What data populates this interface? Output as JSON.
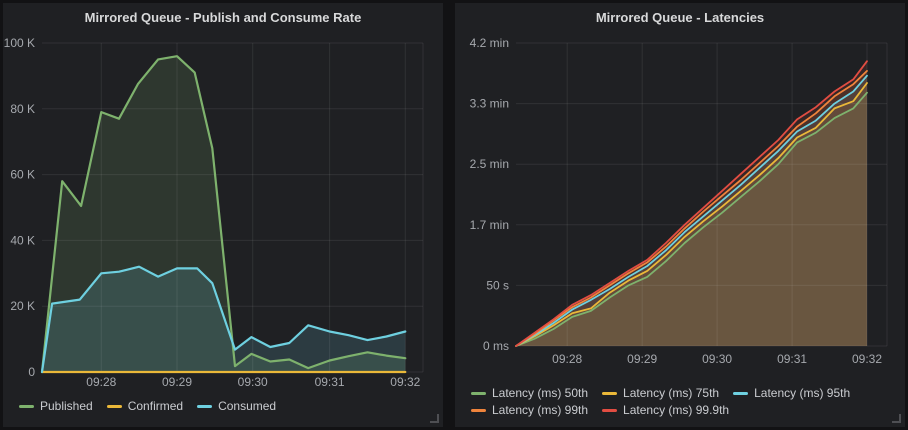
{
  "chart_data": [
    {
      "type": "area",
      "title": "Mirrored Queue - Publish and Consume Rate",
      "x_domain": [
        6,
        308
      ],
      "y_max": 100000,
      "grid": true,
      "legend_position": "bottom",
      "y_ticks": [
        {
          "v": 0,
          "label": "0"
        },
        {
          "v": 20000,
          "label": "20 K"
        },
        {
          "v": 40000,
          "label": "40 K"
        },
        {
          "v": 60000,
          "label": "60 K"
        },
        {
          "v": 80000,
          "label": "80 K"
        },
        {
          "v": 100000,
          "label": "100 K"
        }
      ],
      "x_ticks": [
        {
          "t": 53,
          "label": "09:28"
        },
        {
          "t": 113,
          "label": "09:29"
        },
        {
          "t": 173,
          "label": "09:30"
        },
        {
          "t": 234,
          "label": "09:31"
        },
        {
          "t": 294,
          "label": "09:32"
        }
      ],
      "series": [
        {
          "name": "Published",
          "color": "#7eb26d",
          "fill_opacity": 0.16,
          "points": [
            [
              6,
              0
            ],
            [
              22,
              58000
            ],
            [
              37,
              50500
            ],
            [
              53,
              79000
            ],
            [
              67,
              77000
            ],
            [
              82,
              87500
            ],
            [
              98,
              95000
            ],
            [
              113,
              96000
            ],
            [
              127,
              91000
            ],
            [
              141,
              68000
            ],
            [
              159,
              1800
            ],
            [
              172,
              5500
            ],
            [
              187,
              3200
            ],
            [
              202,
              3800
            ],
            [
              217,
              1200
            ],
            [
              234,
              3500
            ],
            [
              249,
              4800
            ],
            [
              264,
              6000
            ],
            [
              279,
              5000
            ],
            [
              294,
              4200
            ]
          ]
        },
        {
          "name": "Confirmed",
          "color": "#eab839",
          "fill_opacity": 0,
          "points": [
            [
              6,
              0
            ],
            [
              294,
              0
            ]
          ]
        },
        {
          "name": "Consumed",
          "color": "#6ed0e0",
          "fill_opacity": 0.16,
          "points": [
            [
              6,
              0
            ],
            [
              14,
              20800
            ],
            [
              36,
              22000
            ],
            [
              53,
              30000
            ],
            [
              67,
              30500
            ],
            [
              83,
              32000
            ],
            [
              98,
              29000
            ],
            [
              113,
              31500
            ],
            [
              129,
              31500
            ],
            [
              141,
              27000
            ],
            [
              159,
              6800
            ],
            [
              172,
              10600
            ],
            [
              187,
              7600
            ],
            [
              202,
              8800
            ],
            [
              217,
              14200
            ],
            [
              234,
              12300
            ],
            [
              249,
              11200
            ],
            [
              264,
              9700
            ],
            [
              279,
              10800
            ],
            [
              294,
              12300
            ]
          ]
        }
      ]
    },
    {
      "type": "area",
      "title": "Mirrored Queue - Latencies",
      "x_domain": [
        0,
        297
      ],
      "y_max": 250,
      "y_unit": "seconds",
      "grid": true,
      "legend_position": "bottom",
      "y_ticks": [
        {
          "v": 0,
          "label": "0 ms"
        },
        {
          "v": 50,
          "label": "50 s"
        },
        {
          "v": 100,
          "label": "1.7 min"
        },
        {
          "v": 150,
          "label": "2.5 min"
        },
        {
          "v": 200,
          "label": "3.3 min"
        },
        {
          "v": 250,
          "label": "4.2 min"
        }
      ],
      "x_ticks": [
        {
          "t": 41,
          "label": "09:28"
        },
        {
          "t": 101,
          "label": "09:29"
        },
        {
          "t": 161,
          "label": "09:30"
        },
        {
          "t": 221,
          "label": "09:31"
        },
        {
          "t": 281,
          "label": "09:32"
        }
      ],
      "series": [
        {
          "name": "Latency (ms) 50th",
          "color": "#7eb26d",
          "fill_opacity": 0.12,
          "points": [
            [
              0,
              0
            ],
            [
              15,
              6
            ],
            [
              30,
              14
            ],
            [
              45,
              24
            ],
            [
              60,
              29
            ],
            [
              75,
              40
            ],
            [
              90,
              50
            ],
            [
              105,
              57
            ],
            [
              120,
              70
            ],
            [
              135,
              85
            ],
            [
              150,
              98
            ],
            [
              165,
              110
            ],
            [
              180,
              123
            ],
            [
              195,
              136
            ],
            [
              210,
              150
            ],
            [
              225,
              168
            ],
            [
              240,
              176
            ],
            [
              255,
              188
            ],
            [
              270,
              196
            ],
            [
              281,
              209
            ]
          ]
        },
        {
          "name": "Latency (ms) 75th",
          "color": "#eab839",
          "fill_opacity": 0.12,
          "points": [
            [
              0,
              0
            ],
            [
              15,
              8
            ],
            [
              30,
              17
            ],
            [
              45,
              27
            ],
            [
              60,
              31
            ],
            [
              75,
              44
            ],
            [
              90,
              54
            ],
            [
              105,
              62
            ],
            [
              120,
              75
            ],
            [
              135,
              90
            ],
            [
              150,
              103
            ],
            [
              165,
              115
            ],
            [
              180,
              128
            ],
            [
              195,
              141
            ],
            [
              210,
              155
            ],
            [
              225,
              172
            ],
            [
              240,
              180
            ],
            [
              255,
              196
            ],
            [
              270,
              202
            ],
            [
              281,
              217
            ]
          ]
        },
        {
          "name": "Latency (ms) 95th",
          "color": "#6ed0e0",
          "fill_opacity": 0.12,
          "points": [
            [
              0,
              0
            ],
            [
              15,
              9
            ],
            [
              30,
              19
            ],
            [
              45,
              30
            ],
            [
              60,
              38
            ],
            [
              75,
              47
            ],
            [
              90,
              57
            ],
            [
              105,
              66
            ],
            [
              120,
              79
            ],
            [
              135,
              94
            ],
            [
              150,
              107
            ],
            [
              165,
              120
            ],
            [
              180,
              133
            ],
            [
              195,
              147
            ],
            [
              210,
              161
            ],
            [
              225,
              177
            ],
            [
              240,
              186
            ],
            [
              255,
              200
            ],
            [
              270,
              210
            ],
            [
              281,
              223
            ]
          ]
        },
        {
          "name": "Latency (ms) 99th",
          "color": "#ef843c",
          "fill_opacity": 0.12,
          "points": [
            [
              0,
              0
            ],
            [
              15,
              10
            ],
            [
              30,
              21
            ],
            [
              45,
              32
            ],
            [
              60,
              40
            ],
            [
              75,
              50
            ],
            [
              90,
              60
            ],
            [
              105,
              69
            ],
            [
              120,
              82
            ],
            [
              135,
              97
            ],
            [
              150,
              111
            ],
            [
              165,
              124
            ],
            [
              180,
              137
            ],
            [
              195,
              151
            ],
            [
              210,
              165
            ],
            [
              225,
              181
            ],
            [
              240,
              192
            ],
            [
              255,
              206
            ],
            [
              270,
              216
            ],
            [
              281,
              227
            ]
          ]
        },
        {
          "name": "Latency (ms) 99.9th",
          "color": "#e24d42",
          "fill_opacity": 0.12,
          "points": [
            [
              0,
              0
            ],
            [
              15,
              11
            ],
            [
              30,
              22
            ],
            [
              45,
              34
            ],
            [
              60,
              42
            ],
            [
              75,
              52
            ],
            [
              90,
              62
            ],
            [
              105,
              71
            ],
            [
              120,
              85
            ],
            [
              135,
              100
            ],
            [
              150,
              114
            ],
            [
              165,
              128
            ],
            [
              180,
              142
            ],
            [
              195,
              156
            ],
            [
              210,
              170
            ],
            [
              225,
              187
            ],
            [
              240,
              197
            ],
            [
              255,
              210
            ],
            [
              270,
              220
            ],
            [
              281,
              235
            ]
          ]
        }
      ]
    }
  ]
}
